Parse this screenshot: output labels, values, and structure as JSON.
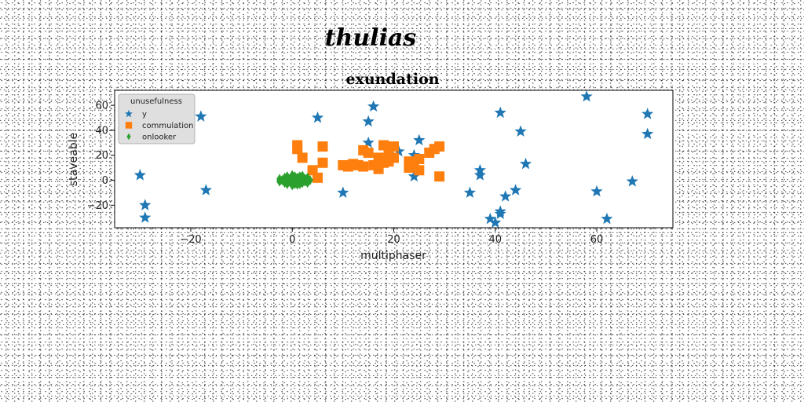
{
  "figure": {
    "suptitle": "thulias"
  },
  "chart_data": {
    "type": "scatter",
    "title": "exundation",
    "xlabel": "multiphaser",
    "ylabel": "staveable",
    "xlim": [
      -35,
      75
    ],
    "ylim": [
      -38,
      72
    ],
    "xticks": [
      -20,
      0,
      20,
      40,
      60
    ],
    "yticks": [
      -20,
      0,
      20,
      40,
      60
    ],
    "grid": false,
    "legend": {
      "title": "unusefulness",
      "position": "top-left"
    },
    "series": [
      {
        "name": "y",
        "marker": "star",
        "color": "#1f77b4",
        "points": [
          [
            -30,
            4
          ],
          [
            -29,
            -20
          ],
          [
            -29,
            -30
          ],
          [
            -18,
            51
          ],
          [
            -17,
            -8
          ],
          [
            5,
            50
          ],
          [
            10,
            -10
          ],
          [
            15,
            47
          ],
          [
            15,
            30
          ],
          [
            16,
            59
          ],
          [
            21,
            23
          ],
          [
            24,
            20
          ],
          [
            24,
            3
          ],
          [
            25,
            32
          ],
          [
            35,
            -10
          ],
          [
            37,
            8
          ],
          [
            37,
            4
          ],
          [
            39,
            -31
          ],
          [
            40,
            -34
          ],
          [
            41,
            -27
          ],
          [
            41,
            -25
          ],
          [
            41,
            54
          ],
          [
            42,
            -13
          ],
          [
            44,
            -8
          ],
          [
            45,
            39
          ],
          [
            46,
            13
          ],
          [
            58,
            67
          ],
          [
            60,
            -9
          ],
          [
            62,
            -31
          ],
          [
            67,
            -1
          ],
          [
            70,
            53
          ],
          [
            70,
            37
          ]
        ]
      },
      {
        "name": "commulation",
        "marker": "square",
        "color": "#ff7f0e",
        "points": [
          [
            1,
            28
          ],
          [
            1,
            25
          ],
          [
            2,
            18
          ],
          [
            4,
            8
          ],
          [
            5,
            2
          ],
          [
            6,
            14
          ],
          [
            6,
            27
          ],
          [
            10,
            12
          ],
          [
            11,
            11
          ],
          [
            12,
            13
          ],
          [
            13,
            12
          ],
          [
            14,
            11
          ],
          [
            14,
            24
          ],
          [
            15,
            22
          ],
          [
            16,
            12
          ],
          [
            17,
            9
          ],
          [
            17,
            18
          ],
          [
            18,
            14
          ],
          [
            18,
            28
          ],
          [
            19,
            21
          ],
          [
            19,
            15
          ],
          [
            20,
            18
          ],
          [
            20,
            27
          ],
          [
            23,
            15
          ],
          [
            23,
            10
          ],
          [
            24,
            13
          ],
          [
            25,
            8
          ],
          [
            25,
            17
          ],
          [
            27,
            22
          ],
          [
            28,
            25
          ],
          [
            29,
            27
          ],
          [
            29,
            3
          ]
        ]
      },
      {
        "name": "onlooker",
        "marker": "diamond",
        "color": "#2ca02c",
        "points": [
          [
            -2,
            0
          ],
          [
            -1.5,
            2
          ],
          [
            -1.5,
            -2
          ],
          [
            -1,
            0
          ],
          [
            -1,
            3
          ],
          [
            -1,
            -3
          ],
          [
            -0.5,
            1
          ],
          [
            -0.5,
            -1
          ],
          [
            0,
            0
          ],
          [
            0,
            2
          ],
          [
            0,
            -2
          ],
          [
            0,
            4
          ],
          [
            0,
            -4
          ],
          [
            0.5,
            1
          ],
          [
            0.5,
            -1
          ],
          [
            0.5,
            3
          ],
          [
            0.5,
            -3
          ],
          [
            1,
            0
          ],
          [
            1,
            2
          ],
          [
            1,
            -2
          ],
          [
            1.5,
            1
          ],
          [
            1.5,
            -1
          ],
          [
            1.5,
            3
          ],
          [
            1.5,
            -3
          ],
          [
            2,
            0
          ],
          [
            2,
            2
          ],
          [
            2,
            -2
          ],
          [
            2.5,
            1
          ],
          [
            2.5,
            -1
          ],
          [
            3,
            0
          ],
          [
            3,
            2
          ],
          [
            3,
            -2
          ],
          [
            -2.5,
            1
          ],
          [
            -2.5,
            -1
          ],
          [
            3.5,
            0
          ],
          [
            -1,
            1.5
          ],
          [
            1,
            -3.5
          ],
          [
            2,
            3.5
          ]
        ]
      }
    ]
  }
}
